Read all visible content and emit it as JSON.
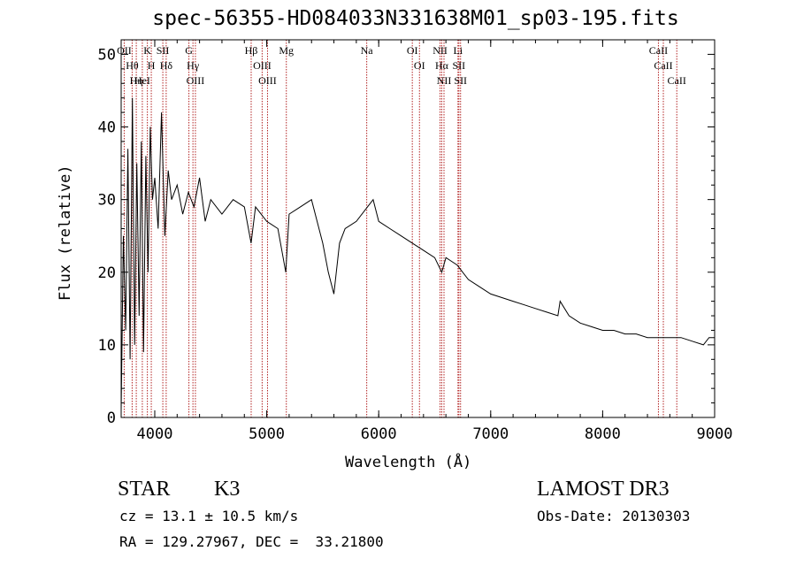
{
  "title": "spec-56355-HD084033N331638M01_sp03-195.fits",
  "info": {
    "object_class": "STAR",
    "subclass": "K3",
    "survey": "LAMOST DR3",
    "cz_text": "cz = 13.1 ± 10.5 km/s",
    "obs_date_text": "Obs-Date: 20130303",
    "radec_text": "RA = 129.27967, DEC =  33.21800"
  },
  "colors": {
    "line_marker": "#b22222",
    "spectrum": "#000000",
    "axes": "#000000"
  },
  "chart_data": {
    "type": "line",
    "title": "spec-56355-HD084033N331638M01_sp03-195.fits",
    "xlabel": "Wavelength (Å)",
    "ylabel": "Flux (relative)",
    "xlim": [
      3700,
      9000
    ],
    "ylim": [
      0,
      52
    ],
    "xticks": [
      4000,
      5000,
      6000,
      7000,
      8000,
      9000
    ],
    "yticks": [
      0,
      10,
      20,
      30,
      40,
      50
    ],
    "grid": false,
    "series": [
      {
        "x": [
          3700,
          3720,
          3740,
          3760,
          3780,
          3800,
          3820,
          3840,
          3860,
          3880,
          3900,
          3920,
          3940,
          3960,
          3980,
          4000,
          4030,
          4060,
          4090,
          4120,
          4150,
          4200,
          4250,
          4300,
          4350,
          4400,
          4450,
          4500,
          4600,
          4700,
          4800,
          4860,
          4900,
          5000,
          5100,
          5170,
          5200,
          5300,
          5400,
          5500,
          5550,
          5600,
          5650,
          5700,
          5800,
          5900,
          5950,
          6000,
          6100,
          6200,
          6300,
          6400,
          6500,
          6563,
          6600,
          6700,
          6800,
          6900,
          7000,
          7100,
          7200,
          7300,
          7400,
          7500,
          7600,
          7620,
          7700,
          7800,
          7900,
          8000,
          8100,
          8200,
          8300,
          8400,
          8500,
          8600,
          8700,
          8800,
          8900,
          8950,
          9000
        ],
        "y": [
          1,
          25,
          12,
          37,
          8,
          44,
          10,
          35,
          14,
          38,
          9,
          36,
          20,
          40,
          30,
          33,
          26,
          42,
          25,
          34,
          30,
          32,
          28,
          31,
          29,
          33,
          27,
          30,
          28,
          30,
          29,
          24,
          29,
          27,
          26,
          20,
          28,
          29,
          30,
          24,
          20,
          17,
          24,
          26,
          27,
          29,
          30,
          27,
          26,
          25,
          24,
          23,
          22,
          20,
          22,
          21,
          19,
          18,
          17,
          16.5,
          16,
          15.5,
          15,
          14.5,
          14,
          16,
          14,
          13,
          12.5,
          12,
          12,
          11.5,
          11.5,
          11,
          11,
          11,
          11,
          10.5,
          10,
          11,
          11
        ]
      }
    ],
    "lines": [
      {
        "name": "Hθ",
        "wl": 3798
      },
      {
        "name": "OII",
        "wl": 3727
      },
      {
        "name": "Hη",
        "wl": 3835
      },
      {
        "name": "HeI",
        "wl": 3889
      },
      {
        "name": "K",
        "wl": 3934
      },
      {
        "name": "H",
        "wl": 3969
      },
      {
        "name": "Hδ",
        "wl": 4102
      },
      {
        "name": "SII",
        "wl": 4072
      },
      {
        "name": "OIII",
        "wl": 4363
      },
      {
        "name": "Hγ",
        "wl": 4341
      },
      {
        "name": "G",
        "wl": 4305
      },
      {
        "name": "Hβ",
        "wl": 4861
      },
      {
        "name": "OIII",
        "wl": 4959
      },
      {
        "name": "OIII",
        "wl": 5007
      },
      {
        "name": "Mg",
        "wl": 5175
      },
      {
        "name": "Na",
        "wl": 5893
      },
      {
        "name": "OI",
        "wl": 6300
      },
      {
        "name": "OI",
        "wl": 6364
      },
      {
        "name": "Hα",
        "wl": 6563
      },
      {
        "name": "NII",
        "wl": 6548
      },
      {
        "name": "NII",
        "wl": 6583
      },
      {
        "name": "SII",
        "wl": 6716
      },
      {
        "name": "Li",
        "wl": 6708
      },
      {
        "name": "SII",
        "wl": 6731
      },
      {
        "name": "CaII",
        "wl": 8498
      },
      {
        "name": "CaII",
        "wl": 8542
      },
      {
        "name": "CaII",
        "wl": 8662
      }
    ]
  }
}
